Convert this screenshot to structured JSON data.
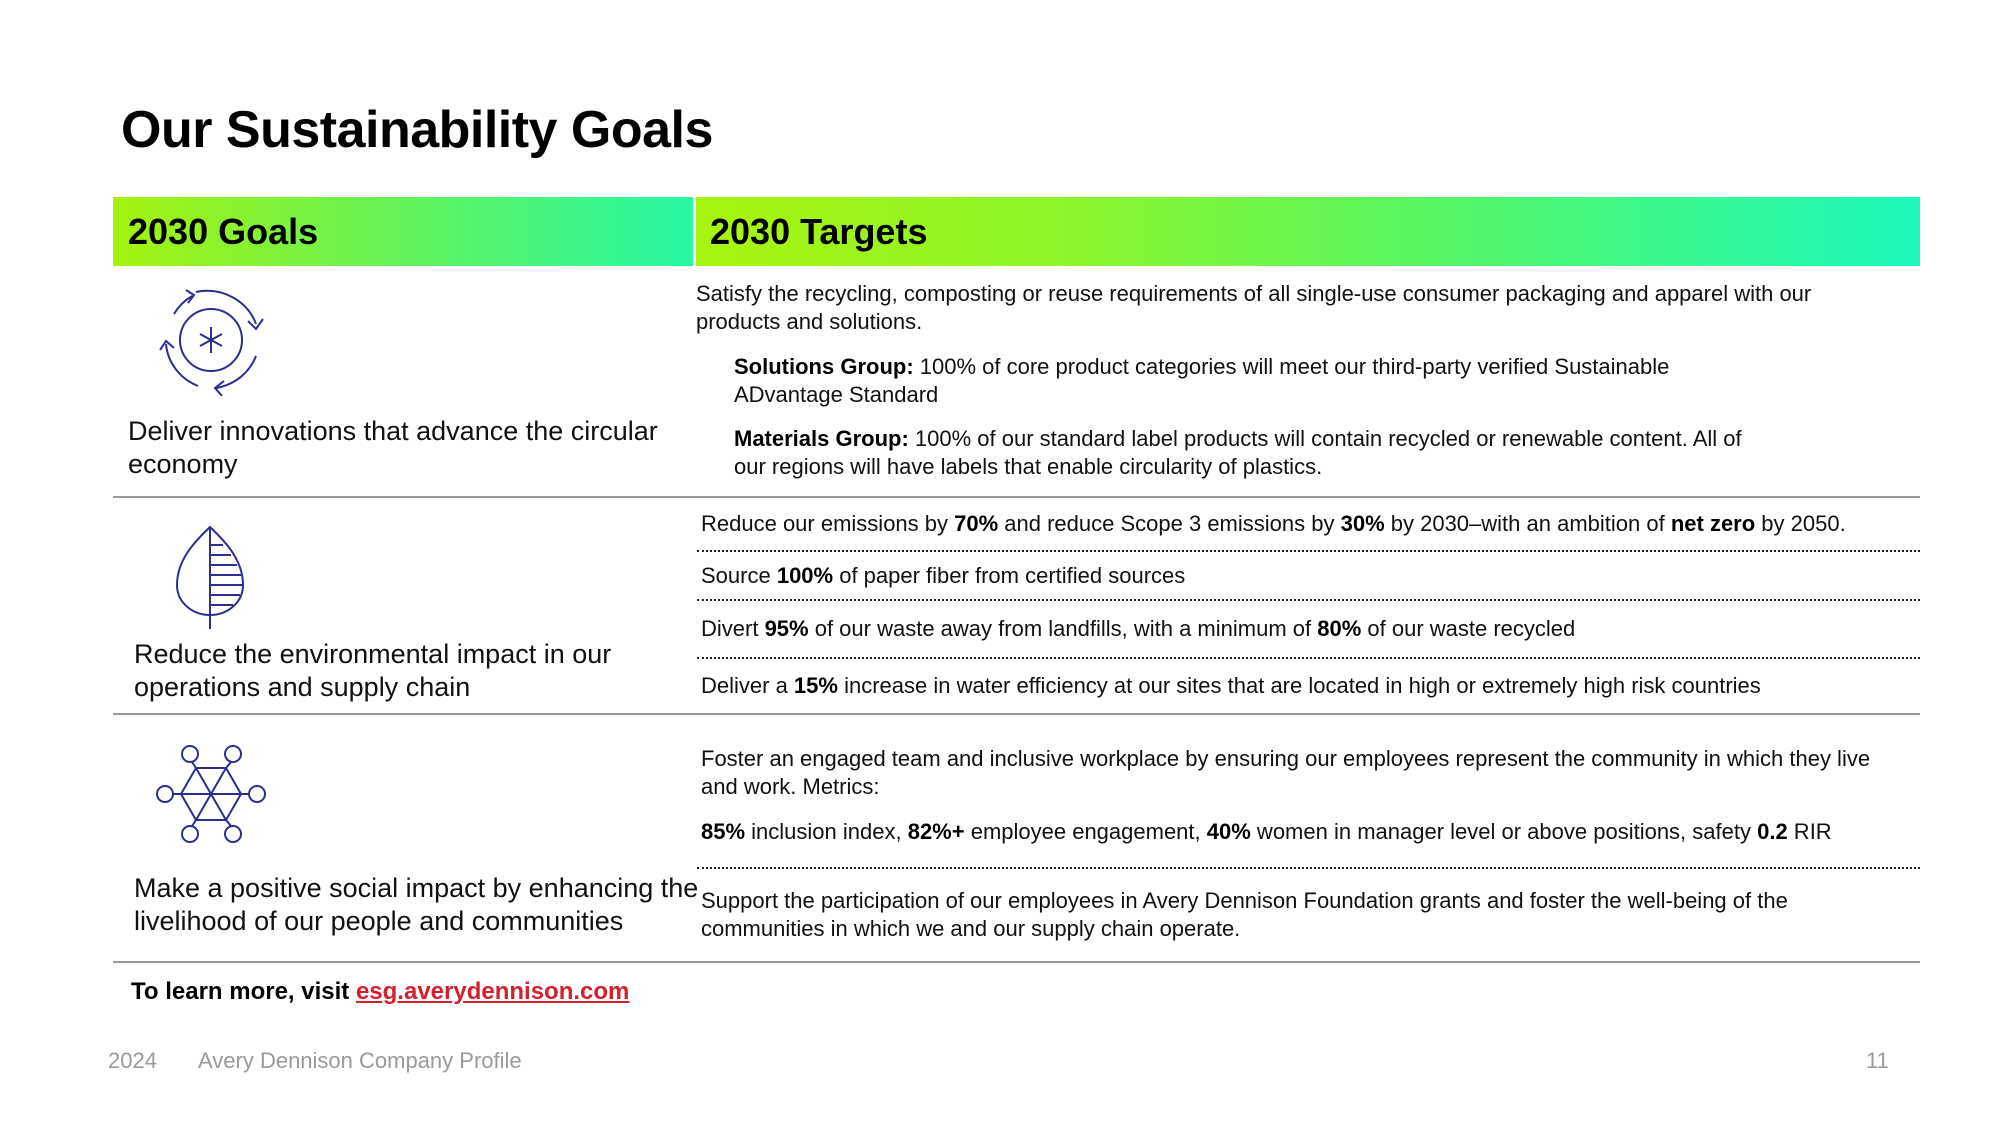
{
  "page_title": "Our Sustainability Goals",
  "headers": {
    "goals": "2030 Goals",
    "targets": "2030 Targets"
  },
  "rows": [
    {
      "goal": "Deliver innovations that advance the circular economy",
      "icon": "circular-arrows-icon",
      "intro": "Satisfy the recycling, composting or reuse requirements of all single-use consumer packaging and apparel with our products and solutions.",
      "solutions_label": "Solutions Group:",
      "solutions_text": " 100% of core product categories will meet our third-party verified Sustainable ADvantage Standard",
      "materials_label": "Materials Group:",
      "materials_text": " 100% of our standard label products will contain recycled or renewable content. All of our regions will have labels that enable circularity of plastics."
    },
    {
      "goal": "Reduce the environmental impact in our operations and supply chain",
      "icon": "leaf-icon",
      "t1": [
        "Reduce our emissions by ",
        "70%",
        " and reduce Scope 3 emissions by ",
        "30%",
        " by 2030–with an ambition of ",
        "net zero",
        " by 2050."
      ],
      "t2": [
        "Source ",
        "100%",
        " of paper fiber from certified sources"
      ],
      "t3": [
        "Divert ",
        "95%",
        " of our waste away from landfills, with a minimum of ",
        "80%",
        " of our waste recycled"
      ],
      "t4": [
        "Deliver a ",
        "15%",
        " increase in water efficiency at our sites that are located in high or extremely high risk countries"
      ]
    },
    {
      "goal": "Make a positive social impact by enhancing the livelihood of our people and communities",
      "icon": "people-network-icon",
      "t1": "Foster an engaged team and inclusive workplace by ensuring our employees represent the community in which they live and work. Metrics:",
      "metrics": [
        "85%",
        " inclusion index, ",
        "82%+",
        " employee engagement, ",
        "40%",
        " women in manager level or above positions, safety ",
        "0.2",
        " RIR"
      ],
      "t2": "Support the participation of our employees in Avery Dennison Foundation grants and foster the well-being of the communities in which we and our supply chain operate."
    }
  ],
  "learn_more": {
    "prefix": "To learn more, visit ",
    "link": "esg.averydennison.com"
  },
  "footer": {
    "year": "2024",
    "title": "Avery Dennison Company Profile",
    "page": "11"
  },
  "colors": {
    "accent_green": "#a6f20f",
    "accent_teal": "#1cf9bc",
    "icon_blue": "#2b2d8f",
    "link_red": "#d41f2c"
  }
}
